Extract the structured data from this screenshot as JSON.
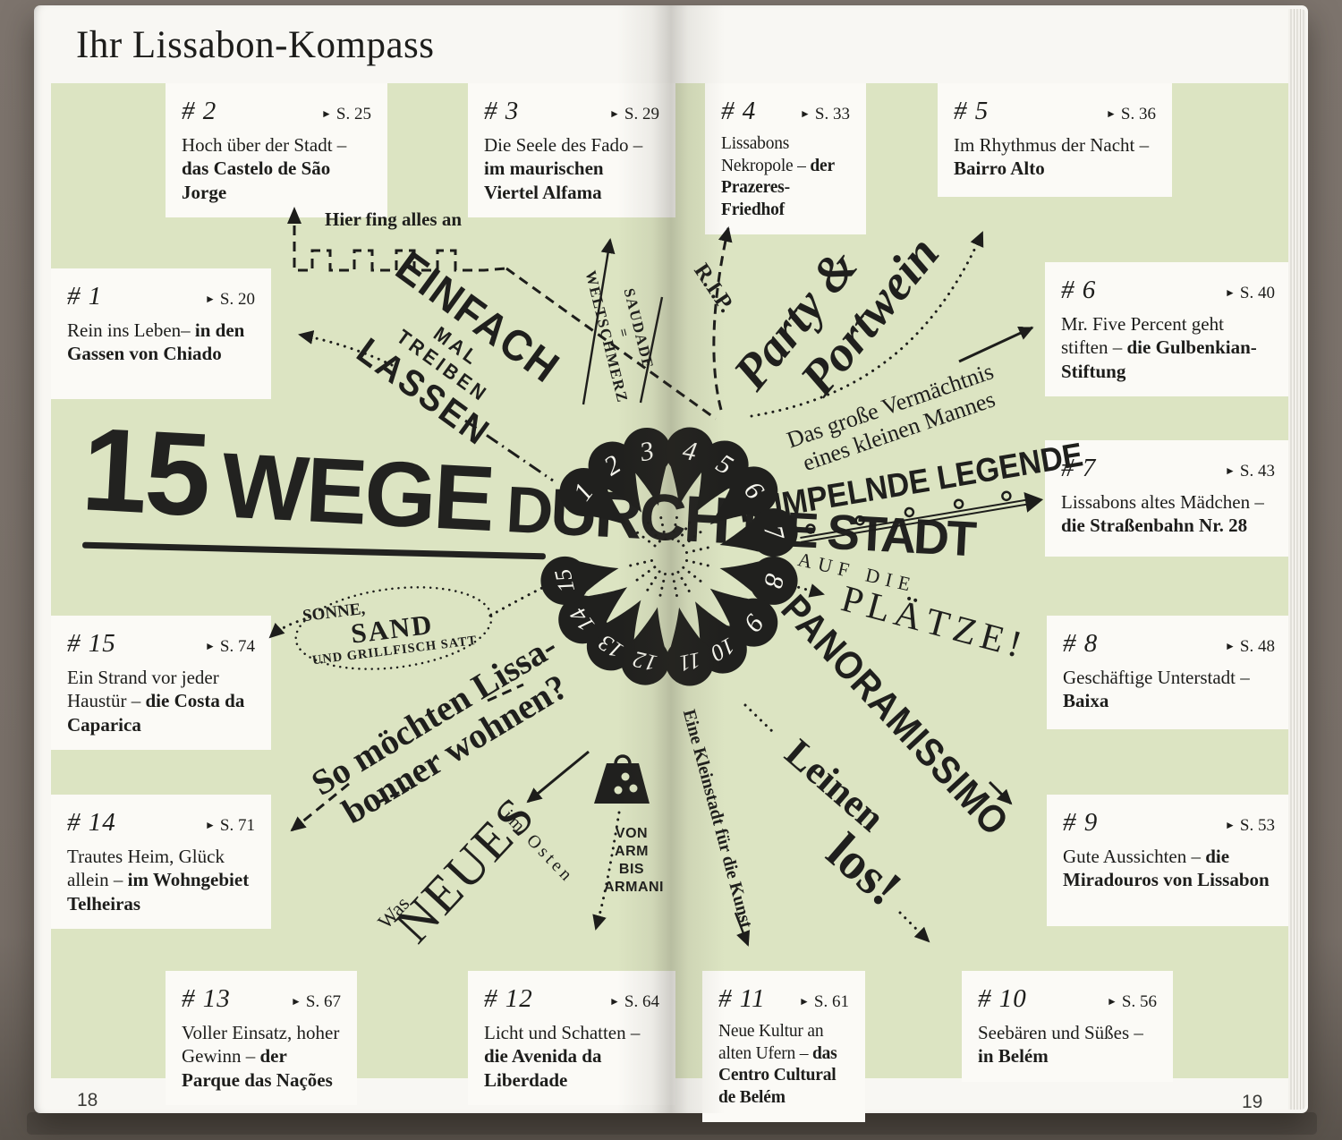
{
  "header": {
    "title": "Ihr Lissabon-Kompass"
  },
  "footer": {
    "left_page_number": "18",
    "right_page_number": "19"
  },
  "headline": {
    "n": "15",
    "w1": "WEGE",
    "w2": "DURCH",
    "w3": "DIE STADT"
  },
  "boxes": [
    {
      "num": "# 1",
      "page": "S. 20",
      "segments": [
        {
          "t": "Rein ins Leben– ",
          "b": false
        },
        {
          "t": "in den Gassen von Chiado",
          "b": true
        }
      ]
    },
    {
      "num": "# 2",
      "page": "S. 25",
      "segments": [
        {
          "t": "Hoch über der Stadt – ",
          "b": false
        },
        {
          "t": "das Castelo de São Jorge",
          "b": true
        }
      ]
    },
    {
      "num": "# 3",
      "page": "S. 29",
      "segments": [
        {
          "t": "Die Seele des Fado – ",
          "b": false
        },
        {
          "t": "im maurischen Viertel Alfama",
          "b": true
        }
      ]
    },
    {
      "num": "# 4",
      "page": "S. 33",
      "segments": [
        {
          "t": "Lissabons Nekropole – ",
          "b": false
        },
        {
          "t": "der Prazeres-Friedhof",
          "b": true
        }
      ]
    },
    {
      "num": "# 5",
      "page": "S. 36",
      "segments": [
        {
          "t": "Im Rhythmus der Nacht – ",
          "b": false
        },
        {
          "t": "Bairro Alto",
          "b": true
        }
      ]
    },
    {
      "num": "# 6",
      "page": "S. 40",
      "segments": [
        {
          "t": "Mr. Five Percent geht stiften – ",
          "b": false
        },
        {
          "t": "die Gulbenkian-Stiftung",
          "b": true
        }
      ]
    },
    {
      "num": "# 7",
      "page": "S. 43",
      "segments": [
        {
          "t": "Lissabons altes Mädchen – ",
          "b": false
        },
        {
          "t": "die Straßenbahn Nr. 28",
          "b": true
        }
      ]
    },
    {
      "num": "# 8",
      "page": "S. 48",
      "segments": [
        {
          "t": "Geschäftige Unterstadt – ",
          "b": false
        },
        {
          "t": "Baixa",
          "b": true
        }
      ]
    },
    {
      "num": "# 9",
      "page": "S. 53",
      "segments": [
        {
          "t": "Gute Aussichten – ",
          "b": false
        },
        {
          "t": "die Miradouros von Lissabon",
          "b": true
        }
      ]
    },
    {
      "num": "# 10",
      "page": "S. 56",
      "segments": [
        {
          "t": "Seebären und Süßes – ",
          "b": false
        },
        {
          "t": "in Belém",
          "b": true
        }
      ]
    },
    {
      "num": "# 11",
      "page": "S. 61",
      "segments": [
        {
          "t": "Neue Kultur an alten Ufern – ",
          "b": false
        },
        {
          "t": "das Centro Cultural de Belém",
          "b": true
        }
      ]
    },
    {
      "num": "# 12",
      "page": "S. 64",
      "segments": [
        {
          "t": "Licht und Schatten – ",
          "b": false
        },
        {
          "t": "die Avenida da Liberdade",
          "b": true
        }
      ]
    },
    {
      "num": "# 13",
      "page": "S. 67",
      "segments": [
        {
          "t": "Voller Einsatz, hoher Gewinn – ",
          "b": false
        },
        {
          "t": "der Parque das Nações",
          "b": true
        }
      ]
    },
    {
      "num": "# 14",
      "page": "S. 71",
      "segments": [
        {
          "t": "Trautes Heim, Glück allein – ",
          "b": false
        },
        {
          "t": "im Wohn­gebiet Telheiras",
          "b": true
        }
      ]
    },
    {
      "num": "# 15",
      "page": "S. 74",
      "segments": [
        {
          "t": "Ein Strand vor jeder Haustür – ",
          "b": false
        },
        {
          "t": "die Costa da Caparica",
          "b": true
        }
      ]
    }
  ],
  "decorations": {
    "hier_fing": "Hier fing alles an",
    "einfach": [
      "EINFACH",
      "MAL",
      "TREIBEN",
      "LASSEN"
    ],
    "saudade": [
      "SAUDADE",
      "=",
      "WELTSCHMERZ"
    ],
    "rip": "R.I.P.",
    "party": [
      "Party &",
      "Portwein"
    ],
    "vermaechtnis": [
      "Das große Vermächtnis",
      "eines kleinen Mannes"
    ],
    "rumpelnde": "RUMPELNDE LEGENDE",
    "auf_die": "AUF DIE",
    "plaetze": "PLÄTZE!",
    "panoramissimo": "PANORAMISSIMO",
    "leinen": "Leinen",
    "los": "los!",
    "kleinstadt": "Eine Kleinstadt für die Kunst",
    "bag_lines": [
      "VON",
      "ARM",
      "BIS",
      "ARMANI"
    ],
    "was": "Was",
    "neues": "NEUES",
    "im_osten": "im Osten",
    "so_moechten": [
      "So möchten Lissa-",
      "bonner wohnen?"
    ],
    "sonne": [
      "SONNE,",
      "SAND",
      "UND GRILLFISCH SATT"
    ]
  },
  "pins": [
    {
      "n": "1",
      "deg": 217
    },
    {
      "n": "2",
      "deg": 238
    },
    {
      "n": "3",
      "deg": 258
    },
    {
      "n": "4",
      "deg": 281
    },
    {
      "n": "5",
      "deg": 301
    },
    {
      "n": "6",
      "deg": 322
    },
    {
      "n": "7",
      "deg": 347
    },
    {
      "n": "8",
      "deg": 13
    },
    {
      "n": "9",
      "deg": 38
    },
    {
      "n": "10",
      "deg": 60
    },
    {
      "n": "11",
      "deg": 79
    },
    {
      "n": "12",
      "deg": 103
    },
    {
      "n": "13",
      "deg": 123
    },
    {
      "n": "14",
      "deg": 144
    },
    {
      "n": "15",
      "deg": 167
    }
  ],
  "colors": {
    "panel_green": "#dce4c2",
    "ink": "#1d1d1b",
    "paper": "#f8f7f3",
    "box_white": "#fbfaf6",
    "backdrop": "#6d655e"
  }
}
